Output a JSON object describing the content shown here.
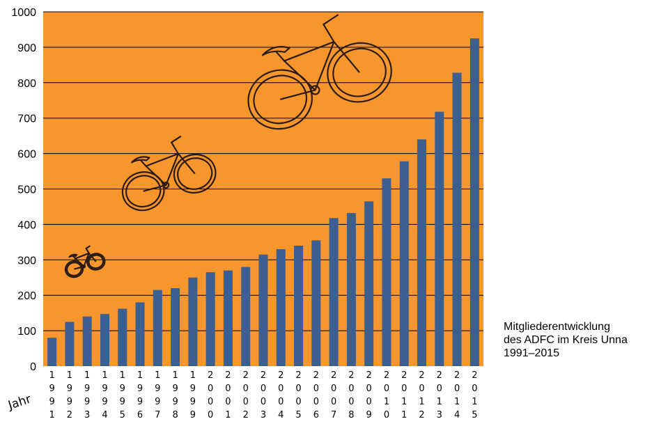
{
  "chart_data": {
    "type": "bar",
    "categories": [
      "1991",
      "1992",
      "1993",
      "1994",
      "1995",
      "1996",
      "1997",
      "1998",
      "1999",
      "2000",
      "2001",
      "2002",
      "2003",
      "2004",
      "2005",
      "2006",
      "2007",
      "2008",
      "2009",
      "2010",
      "2011",
      "2012",
      "2013",
      "2014",
      "2015"
    ],
    "values": [
      80,
      125,
      140,
      147,
      162,
      180,
      215,
      220,
      250,
      265,
      270,
      280,
      315,
      330,
      340,
      355,
      418,
      432,
      465,
      530,
      578,
      640,
      718,
      828,
      925
    ],
    "ylim": [
      0,
      1000
    ],
    "yticks": [
      0,
      100,
      200,
      300,
      400,
      500,
      600,
      700,
      800,
      900,
      1000
    ],
    "xlabel": "Jahr",
    "grid": true,
    "colors": {
      "plot_background": "#f7962d",
      "bar": "#3a5f90",
      "gridline": "#000000",
      "bicycle_stroke": "#2a1a10"
    },
    "decorations": [
      "bicycle-icon-small",
      "bicycle-icon-medium",
      "bicycle-icon-large"
    ]
  },
  "caption": {
    "line1": "Mitgliederentwicklung",
    "line2": "des ADFC im Kreis Unna",
    "line3": "1991–2015"
  }
}
